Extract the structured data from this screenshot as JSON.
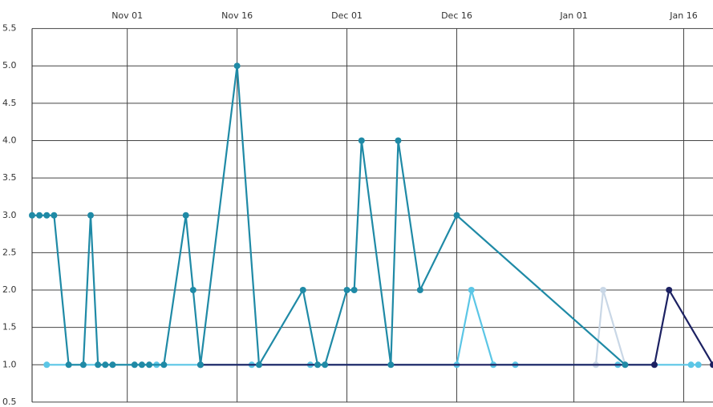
{
  "chart_data": {
    "type": "line",
    "xlim": [
      "Oct 19",
      "Jan 20"
    ],
    "xticks": [
      "Nov 01",
      "Nov 16",
      "Dec 01",
      "Dec 16",
      "Jan 01",
      "Jan 16"
    ],
    "ylim": [
      0.5,
      5.5
    ],
    "yticks": [
      0.5,
      {
        "value": 1,
        "label": "1.0"
      },
      1.5,
      {
        "value": 2,
        "label": "2.0"
      },
      2.5,
      {
        "value": 3,
        "label": "3.0"
      },
      3.5,
      {
        "value": 4,
        "label": "4.0"
      },
      4.5,
      {
        "value": 5,
        "label": "5.0"
      },
      5.5
    ],
    "grid": true,
    "series": [
      {
        "color": "#5bc6e6",
        "x": [
          "Oct 21",
          "Nov 05",
          "Nov 18",
          "Nov 26",
          "Dec 16",
          "Dec 18",
          "Dec 21",
          "Dec 24",
          "Jan 07",
          "Jan 17",
          "Jan 18"
        ],
        "values": [
          1,
          1,
          1,
          1,
          1,
          2,
          1,
          1,
          1,
          1,
          1
        ]
      },
      {
        "color": "#c9d7e6",
        "x": [
          "Jan 04",
          "Jan 05",
          "Jan 08"
        ],
        "values": [
          1,
          2,
          1
        ]
      },
      {
        "color": "#1c2162",
        "x": [
          "Nov 11",
          "Jan 12",
          "Jan 14",
          "Jan 20"
        ],
        "values": [
          1,
          1,
          2,
          1
        ]
      },
      {
        "color": "#1f8aa6",
        "x": [
          "Oct 19",
          "Oct 20",
          "Oct 21",
          "Oct 22",
          "Oct 24",
          "Oct 26",
          "Oct 27",
          "Oct 28",
          "Oct 29",
          "Oct 30",
          "Nov 02",
          "Nov 03",
          "Nov 04",
          "Nov 06",
          "Nov 09",
          "Nov 10",
          "Nov 11",
          "Nov 16",
          "Nov 19",
          "Nov 25",
          "Nov 27",
          "Nov 28",
          "Dec 01",
          "Dec 02",
          "Dec 03",
          "Dec 07",
          "Dec 08",
          "Dec 11",
          "Dec 16",
          "Jan 08"
        ],
        "values": [
          3,
          3,
          3,
          3,
          1,
          1,
          3,
          1,
          1,
          1,
          1,
          1,
          1,
          1,
          3,
          2,
          1,
          5,
          1,
          2,
          1,
          1,
          2,
          2,
          4,
          1,
          4,
          2,
          3,
          1
        ]
      }
    ]
  }
}
